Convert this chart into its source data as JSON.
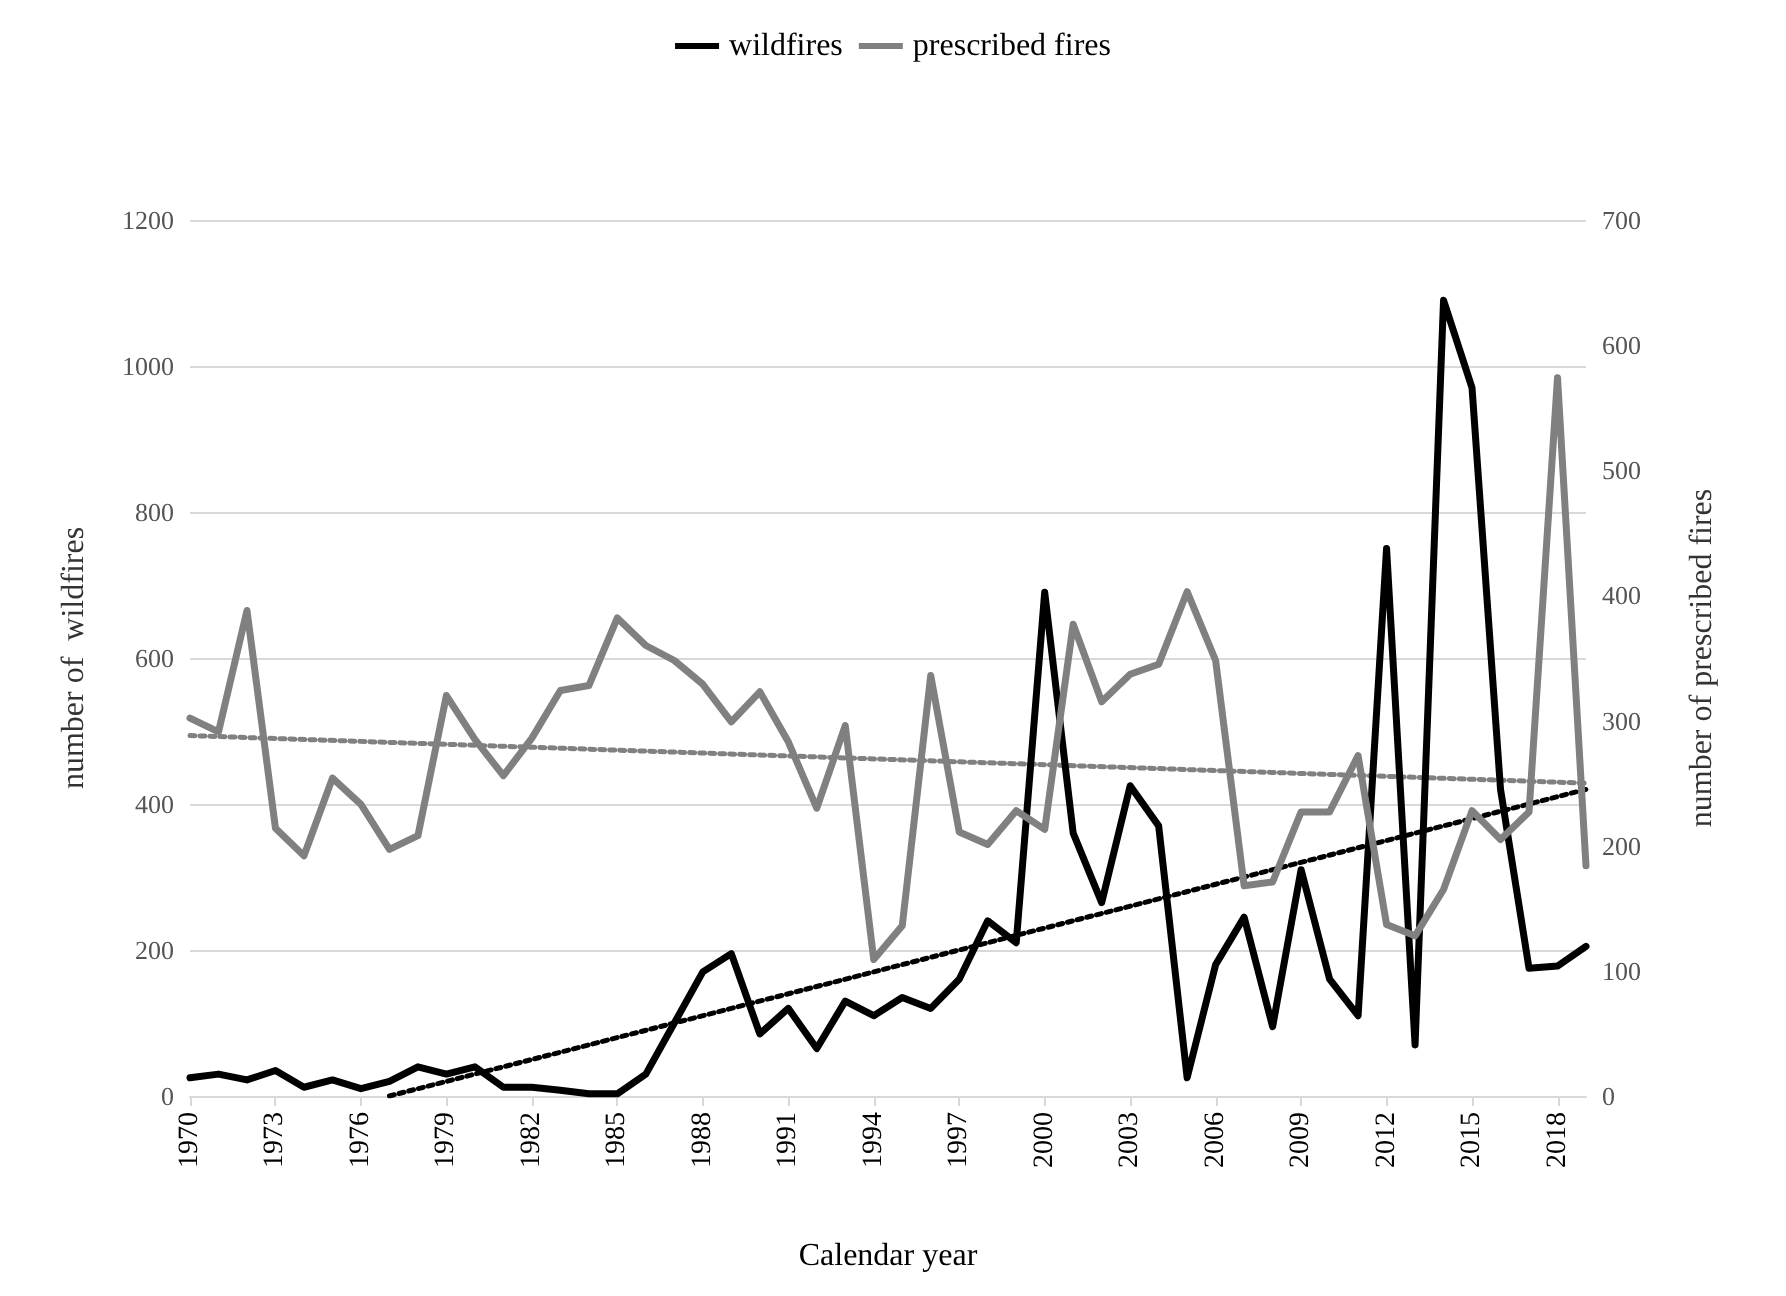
{
  "chart_data": {
    "type": "line",
    "xlabel": "Calendar year",
    "ylabel": "number of  wildfires",
    "y2label": "number of prescribed fires",
    "x": [
      1970,
      1971,
      1972,
      1973,
      1974,
      1975,
      1976,
      1977,
      1978,
      1979,
      1980,
      1981,
      1982,
      1983,
      1984,
      1985,
      1986,
      1987,
      1988,
      1989,
      1990,
      1991,
      1992,
      1993,
      1994,
      1995,
      1996,
      1997,
      1998,
      1999,
      2000,
      2001,
      2002,
      2003,
      2004,
      2005,
      2006,
      2007,
      2008,
      2009,
      2010,
      2011,
      2012,
      2013,
      2014,
      2015,
      2016,
      2017,
      2018,
      2019
    ],
    "xlim": [
      1970,
      2019
    ],
    "xticks": [
      1970,
      1973,
      1976,
      1979,
      1982,
      1985,
      1988,
      1991,
      1994,
      1997,
      2000,
      2003,
      2006,
      2009,
      2012,
      2015,
      2018
    ],
    "ylim": [
      0,
      1200
    ],
    "yticks": [
      0,
      200,
      400,
      600,
      800,
      1000,
      1200
    ],
    "y2lim": [
      0,
      700
    ],
    "y2ticks": [
      0,
      100,
      200,
      300,
      400,
      500,
      600,
      700
    ],
    "grid": "y",
    "legend": "top",
    "marker": "none",
    "line_style": "solid",
    "series": [
      {
        "name": "wildfires",
        "color": "#000000",
        "values": [
          25,
          30,
          22,
          35,
          12,
          22,
          10,
          20,
          40,
          30,
          40,
          12,
          12,
          8,
          3,
          3,
          30,
          100,
          170,
          195,
          85,
          120,
          65,
          130,
          110,
          135,
          120,
          160,
          240,
          210,
          690,
          360,
          265,
          425,
          370,
          25,
          180,
          245,
          95,
          310,
          160,
          110,
          750,
          70,
          1090,
          970,
          420,
          175,
          178,
          205
        ]
      },
      {
        "name": "prescribed fires",
        "color": "#808080",
        "axis": "y2",
        "values": [
          302,
          291,
          388,
          214,
          192,
          254,
          233,
          197,
          208,
          320,
          285,
          256,
          286,
          324,
          328,
          382,
          360,
          348,
          329,
          299,
          323,
          283,
          230,
          296,
          109,
          136,
          336,
          211,
          201,
          228,
          213,
          377,
          315,
          337,
          345,
          403,
          348,
          168,
          171,
          227,
          227,
          272,
          137,
          128,
          165,
          228,
          205,
          227,
          574,
          184
        ]
      },
      {
        "color": "#000000",
        "x": [
          1977,
          2019
        ],
        "values": [
          0,
          420
        ],
        "line_style": "dotted"
      },
      {
        "color": "#808080",
        "axis": "y2",
        "x": [
          1970,
          2019
        ],
        "values": [
          288,
          250
        ],
        "line_style": "dotted"
      }
    ]
  }
}
